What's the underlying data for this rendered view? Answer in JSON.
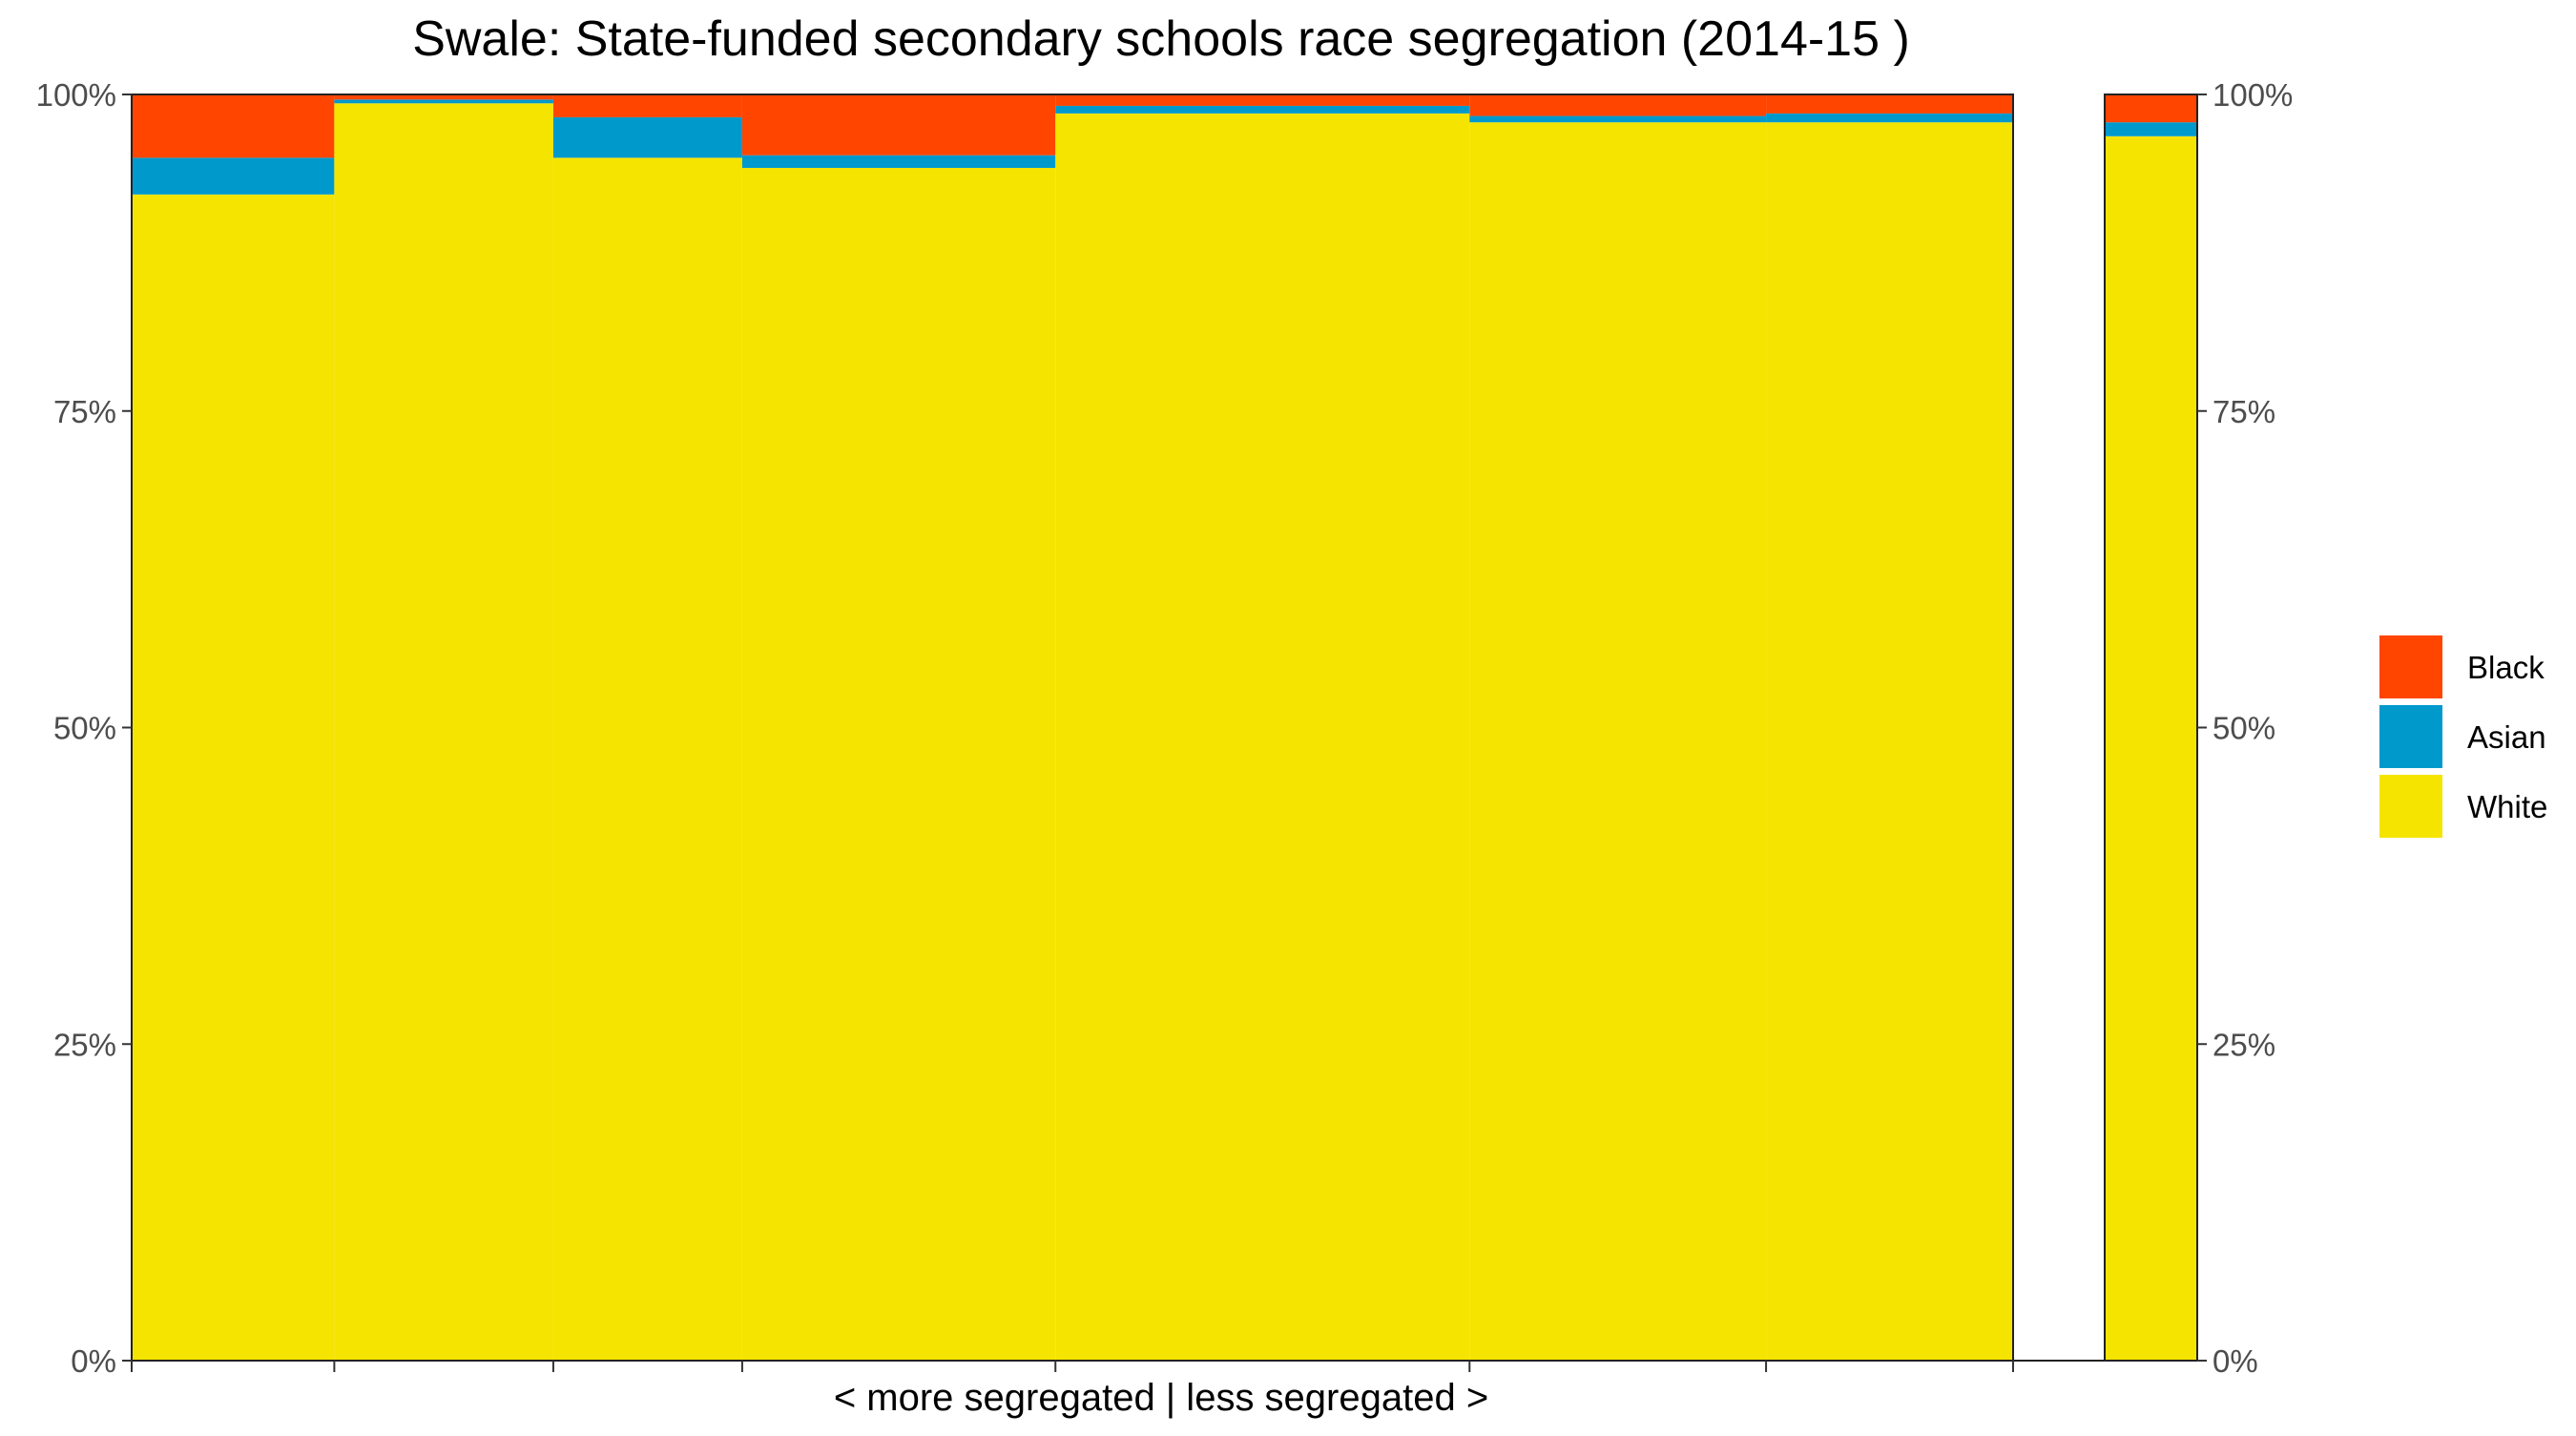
{
  "chart_data": {
    "type": "bar",
    "title": "Swale: State-funded secondary schools race segregation (2014-15 )",
    "xlabel": "< more segregated | less segregated >",
    "ylabel": "",
    "ylim": [
      0,
      100
    ],
    "y_ticks": [
      "0%",
      "25%",
      "50%",
      "75%",
      "100%"
    ],
    "grid": false,
    "legend_position": "right",
    "colors": {
      "Black": "#FF4500",
      "Asian": "#0099CC",
      "White": "#F5E400"
    },
    "series": [
      {
        "name": "White",
        "values": [
          92.1,
          99.3,
          95.0,
          94.2,
          98.5,
          97.8,
          97.8,
          96.7
        ]
      },
      {
        "name": "Asian",
        "values": [
          2.9,
          0.3,
          3.2,
          1.0,
          0.6,
          0.5,
          0.7,
          1.1
        ]
      },
      {
        "name": "Black",
        "values": [
          5.0,
          0.4,
          1.8,
          4.8,
          0.9,
          1.7,
          1.5,
          2.2
        ]
      }
    ],
    "column_shares": [
      0.1077,
      0.1164,
      0.1004,
      0.1665,
      0.2201,
      0.1576,
      0.1313
    ]
  }
}
